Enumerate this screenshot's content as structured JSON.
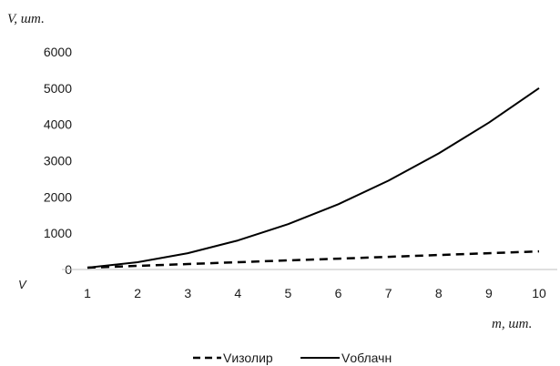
{
  "chart_data": {
    "type": "line",
    "ylabel": "V, шт.",
    "xlabel": "m, шт.",
    "axis_corner_label": "V",
    "x": [
      1,
      2,
      3,
      4,
      5,
      6,
      7,
      8,
      9,
      10
    ],
    "ylim": [
      0,
      6000
    ],
    "yticks": [
      0,
      1000,
      2000,
      3000,
      4000,
      5000,
      6000
    ],
    "grid": false,
    "legend_position": "bottom",
    "series": [
      {
        "name": "Vизолир",
        "style": "dashed",
        "color": "#000000",
        "values": [
          50,
          100,
          150,
          200,
          250,
          300,
          350,
          400,
          450,
          500
        ]
      },
      {
        "name": "Vоблачн",
        "style": "solid",
        "color": "#000000",
        "values": [
          50,
          200,
          450,
          800,
          1250,
          1800,
          2450,
          3200,
          4050,
          5000
        ]
      }
    ]
  }
}
